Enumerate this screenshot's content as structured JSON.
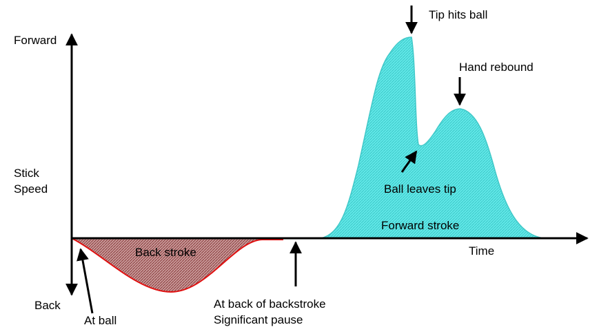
{
  "axes": {
    "y_top": "Forward",
    "y_label": [
      "Stick",
      "Speed"
    ],
    "y_bottom": "Back",
    "x_label": "Time"
  },
  "regions": {
    "back_stroke": "Back stroke",
    "forward_stroke": "Forward stroke"
  },
  "annotations": {
    "tip_hits_ball": "Tip hits ball",
    "hand_rebound": "Hand rebound",
    "ball_leaves_tip": "Ball leaves tip",
    "at_ball": "At ball",
    "at_back": [
      "At back of backstroke",
      "Significant pause"
    ]
  }
}
